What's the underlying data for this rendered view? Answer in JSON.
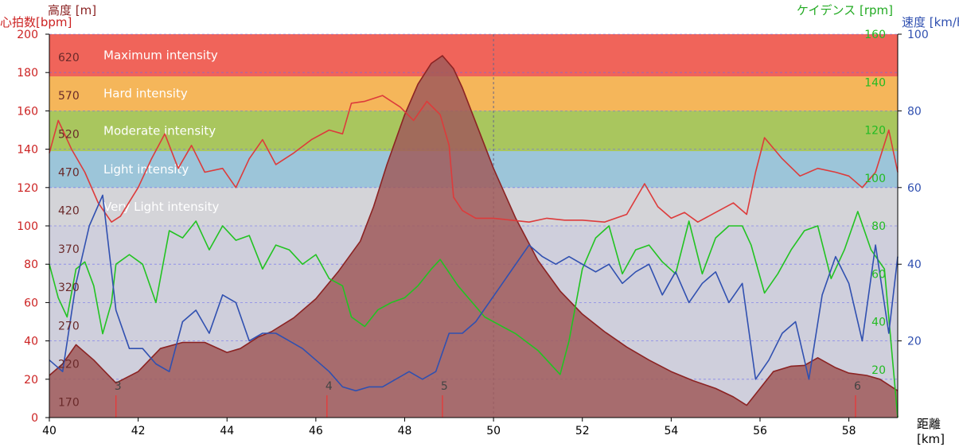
{
  "chart_data": {
    "type": "line",
    "labels": {
      "alt_axis": "高度 [m]",
      "hr_axis": "心拍数[bpm]",
      "cad_axis": "ケイデンス [rpm]",
      "speed_axis": "速度 [km/h]",
      "x_axis_line1": "距離",
      "x_axis_line2": "[km]"
    },
    "x_ticks": [
      "40",
      "42",
      "44",
      "46",
      "48",
      "50",
      "52",
      "54",
      "56",
      "58"
    ],
    "hr_ticks": [
      "0",
      "20",
      "40",
      "60",
      "80",
      "100",
      "120",
      "140",
      "160",
      "180",
      "200"
    ],
    "alt_ticks": [
      "170",
      "220",
      "270",
      "320",
      "370",
      "420",
      "470",
      "520",
      "570",
      "620"
    ],
    "cad_ticks": [
      "20",
      "40",
      "60",
      "80",
      "100",
      "120",
      "140",
      "160"
    ],
    "speed_ticks": [
      "20",
      "40",
      "60",
      "80",
      "100"
    ],
    "xlim": [
      40,
      59.1
    ],
    "hr_ylim": [
      0,
      200
    ],
    "alt_ylim": [
      150,
      650
    ],
    "cad_ylim": [
      0,
      160
    ],
    "speed_ylim": [
      0,
      100
    ],
    "zones": [
      {
        "label": "Maximum intensity",
        "from": 178,
        "to": 200,
        "color": "#f0645a"
      },
      {
        "label": "Hard intensity",
        "from": 160,
        "to": 178,
        "color": "#f5b65a"
      },
      {
        "label": "Moderate intensity",
        "from": 139,
        "to": 160,
        "color": "#a9c65e"
      },
      {
        "label": "Light intensity",
        "from": 120,
        "to": 139,
        "color": "#9cc5d9"
      },
      {
        "label": "Very Light intensity",
        "from": 100,
        "to": 120,
        "color": "#d4d4d8"
      }
    ],
    "lap_markers": [
      {
        "label": "3",
        "x": 41.5
      },
      {
        "label": "4",
        "x": 46.25
      },
      {
        "label": "5",
        "x": 48.85
      },
      {
        "label": "6",
        "x": 58.15
      }
    ],
    "cursor_x": 50.0,
    "series": [
      {
        "name": "高度",
        "color": "#8b2323",
        "fill": "#a05a5a",
        "axis": "alt",
        "x": [
          40,
          40.3,
          40.6,
          41,
          41.5,
          42,
          42.5,
          43,
          43.5,
          44,
          44.3,
          44.7,
          45,
          45.5,
          46,
          46.5,
          47,
          47.3,
          47.6,
          48,
          48.3,
          48.6,
          48.85,
          49.1,
          49.3,
          49.6,
          50,
          50.5,
          51,
          51.5,
          52,
          52.5,
          53,
          53.5,
          54,
          54.5,
          55,
          55.4,
          55.7,
          56,
          56.3,
          56.7,
          57,
          57.3,
          57.7,
          58,
          58.4,
          58.7,
          59.1
        ],
        "y": [
          205,
          220,
          245,
          225,
          195,
          210,
          240,
          248,
          248,
          235,
          240,
          255,
          262,
          280,
          305,
          340,
          380,
          425,
          480,
          545,
          585,
          612,
          622,
          605,
          580,
          535,
          475,
          410,
          355,
          315,
          285,
          262,
          242,
          225,
          210,
          198,
          188,
          177,
          166,
          188,
          210,
          217,
          218,
          228,
          215,
          208,
          205,
          200,
          185
        ]
      },
      {
        "name": "心拍数",
        "color": "#dd3b3b",
        "axis": "hr",
        "x": [
          40,
          40.2,
          40.5,
          40.8,
          41.1,
          41.4,
          41.6,
          42,
          42.3,
          42.6,
          42.9,
          43.2,
          43.5,
          43.9,
          44.2,
          44.5,
          44.8,
          45.1,
          45.5,
          45.9,
          46.3,
          46.6,
          46.8,
          47.1,
          47.5,
          47.9,
          48.2,
          48.5,
          48.8,
          49.0,
          49.1,
          49.3,
          49.6,
          50,
          50.4,
          50.8,
          51.2,
          51.6,
          52,
          52.5,
          53,
          53.4,
          53.7,
          54,
          54.3,
          54.6,
          55,
          55.4,
          55.7,
          55.9,
          56.1,
          56.5,
          56.9,
          57.3,
          57.7,
          58,
          58.3,
          58.6,
          58.9,
          59.1
        ],
        "y": [
          138,
          155,
          140,
          128,
          112,
          102,
          105,
          120,
          135,
          148,
          130,
          142,
          128,
          130,
          120,
          135,
          145,
          132,
          138,
          145,
          150,
          148,
          164,
          165,
          168,
          162,
          155,
          165,
          158,
          142,
          115,
          108,
          104,
          104,
          103,
          102,
          104,
          103,
          103,
          102,
          106,
          122,
          110,
          104,
          107,
          102,
          107,
          112,
          106,
          128,
          146,
          135,
          126,
          130,
          128,
          126,
          120,
          128,
          150,
          128
        ]
      },
      {
        "name": "ケイデンス",
        "color": "#22c322",
        "axis": "cad",
        "x": [
          40,
          40.2,
          40.4,
          40.6,
          40.8,
          41,
          41.2,
          41.4,
          41.5,
          41.8,
          42.1,
          42.4,
          42.7,
          43,
          43.3,
          43.6,
          43.9,
          44.2,
          44.5,
          44.8,
          45.1,
          45.4,
          45.7,
          46,
          46.3,
          46.6,
          46.8,
          47.1,
          47.4,
          47.7,
          48,
          48.3,
          48.6,
          48.8,
          49.2,
          49.8,
          50.5,
          51.0,
          51.5,
          51.7,
          52,
          52.3,
          52.6,
          52.9,
          53.2,
          53.5,
          53.8,
          54.1,
          54.4,
          54.7,
          55,
          55.3,
          55.6,
          55.8,
          56.1,
          56.4,
          56.7,
          57,
          57.3,
          57.6,
          57.9,
          58.2,
          58.5,
          58.8,
          59.1
        ],
        "y": [
          64,
          50,
          42,
          62,
          65,
          55,
          35,
          48,
          64,
          68,
          64,
          48,
          78,
          75,
          82,
          70,
          80,
          74,
          76,
          62,
          72,
          70,
          64,
          68,
          58,
          55,
          42,
          38,
          45,
          48,
          50,
          55,
          62,
          66,
          55,
          42,
          35,
          28,
          18,
          32,
          62,
          75,
          80,
          60,
          70,
          72,
          65,
          60,
          82,
          60,
          75,
          80,
          80,
          72,
          52,
          60,
          70,
          78,
          80,
          58,
          70,
          86,
          70,
          62,
          0
        ]
      },
      {
        "name": "速度",
        "color": "#3050b0",
        "axis": "speed",
        "x": [
          40,
          40.3,
          40.6,
          40.9,
          41.2,
          41.5,
          41.8,
          42.1,
          42.4,
          42.7,
          43,
          43.3,
          43.6,
          43.9,
          44.2,
          44.5,
          44.8,
          45.1,
          45.4,
          45.7,
          46,
          46.3,
          46.6,
          46.9,
          47.2,
          47.5,
          47.8,
          48.1,
          48.4,
          48.7,
          49.0,
          49.3,
          49.6,
          49.9,
          50.2,
          50.5,
          50.8,
          51.1,
          51.4,
          51.7,
          52,
          52.3,
          52.6,
          52.9,
          53.2,
          53.5,
          53.8,
          54.1,
          54.4,
          54.7,
          55,
          55.3,
          55.6,
          55.9,
          56.2,
          56.5,
          56.8,
          57.1,
          57.4,
          57.7,
          58.0,
          58.3,
          58.6,
          58.9,
          59.1
        ],
        "y": [
          15,
          12,
          35,
          50,
          58,
          28,
          18,
          18,
          14,
          12,
          25,
          28,
          22,
          32,
          30,
          20,
          22,
          22,
          20,
          18,
          15,
          12,
          8,
          7,
          8,
          8,
          10,
          12,
          10,
          12,
          22,
          22,
          25,
          30,
          35,
          40,
          45,
          42,
          40,
          42,
          40,
          38,
          40,
          35,
          38,
          40,
          32,
          38,
          30,
          35,
          38,
          30,
          35,
          10,
          15,
          22,
          25,
          10,
          32,
          42,
          35,
          20,
          45,
          22,
          42
        ]
      }
    ]
  }
}
